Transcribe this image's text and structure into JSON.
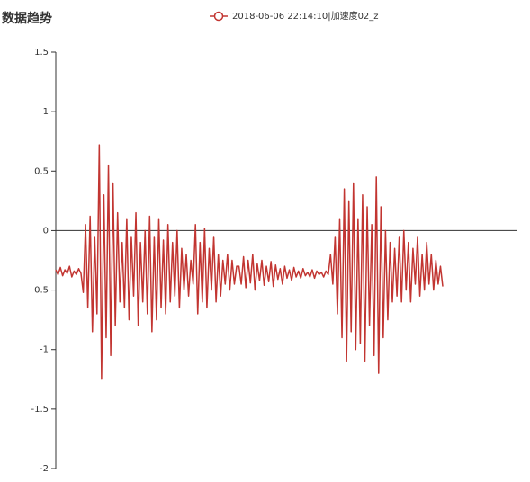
{
  "chart_data": {
    "type": "line",
    "title": "数据趋势",
    "series": [
      {
        "name": "2018-06-06 22:14:10|加速度02_z",
        "color": "#c23531",
        "values": [
          -0.33,
          -0.37,
          -0.31,
          -0.38,
          -0.33,
          -0.36,
          -0.3,
          -0.39,
          -0.34,
          -0.37,
          -0.32,
          -0.36,
          -0.52,
          0.05,
          -0.65,
          0.12,
          -0.85,
          -0.05,
          -0.7,
          0.72,
          -1.25,
          0.3,
          -0.9,
          0.55,
          -1.05,
          0.4,
          -0.8,
          0.15,
          -0.6,
          -0.1,
          -0.65,
          0.1,
          -0.75,
          -0.05,
          -0.55,
          0.15,
          -0.8,
          -0.1,
          -0.6,
          0.0,
          -0.7,
          0.12,
          -0.85,
          -0.05,
          -0.75,
          0.1,
          -0.65,
          -0.08,
          -0.7,
          0.05,
          -0.6,
          -0.1,
          -0.55,
          0.0,
          -0.65,
          -0.15,
          -0.5,
          -0.2,
          -0.55,
          -0.25,
          -0.45,
          0.05,
          -0.7,
          -0.1,
          -0.6,
          0.02,
          -0.65,
          -0.15,
          -0.5,
          -0.05,
          -0.6,
          -0.2,
          -0.55,
          -0.25,
          -0.45,
          -0.2,
          -0.5,
          -0.25,
          -0.45,
          -0.3,
          -0.3,
          -0.45,
          -0.22,
          -0.48,
          -0.25,
          -0.44,
          -0.2,
          -0.5,
          -0.28,
          -0.42,
          -0.25,
          -0.46,
          -0.3,
          -0.43,
          -0.26,
          -0.47,
          -0.29,
          -0.41,
          -0.32,
          -0.45,
          -0.3,
          -0.4,
          -0.33,
          -0.42,
          -0.31,
          -0.39,
          -0.34,
          -0.4,
          -0.32,
          -0.38,
          -0.35,
          -0.39,
          -0.33,
          -0.4,
          -0.34,
          -0.37,
          -0.35,
          -0.39,
          -0.34,
          -0.37,
          -0.2,
          -0.45,
          -0.05,
          -0.7,
          0.1,
          -0.9,
          0.35,
          -1.1,
          0.25,
          -0.85,
          0.4,
          -1.0,
          0.1,
          -0.95,
          0.3,
          -1.1,
          0.2,
          -0.8,
          0.05,
          -1.05,
          0.45,
          -1.2,
          0.2,
          -0.9,
          0.0,
          -0.75,
          -0.1,
          -0.6,
          -0.15,
          -0.55,
          -0.05,
          -0.6,
          0.0,
          -0.5,
          -0.1,
          -0.6,
          -0.15,
          -0.45,
          -0.05,
          -0.55,
          -0.2,
          -0.5,
          -0.1,
          -0.45,
          -0.2,
          -0.5,
          -0.25,
          -0.45,
          -0.3,
          -0.47
        ]
      }
    ],
    "ylim": [
      -2,
      1.5
    ],
    "yticks": [
      -2,
      -1.5,
      -1,
      -0.5,
      0,
      0.5,
      1,
      1.5
    ],
    "grid": false
  }
}
